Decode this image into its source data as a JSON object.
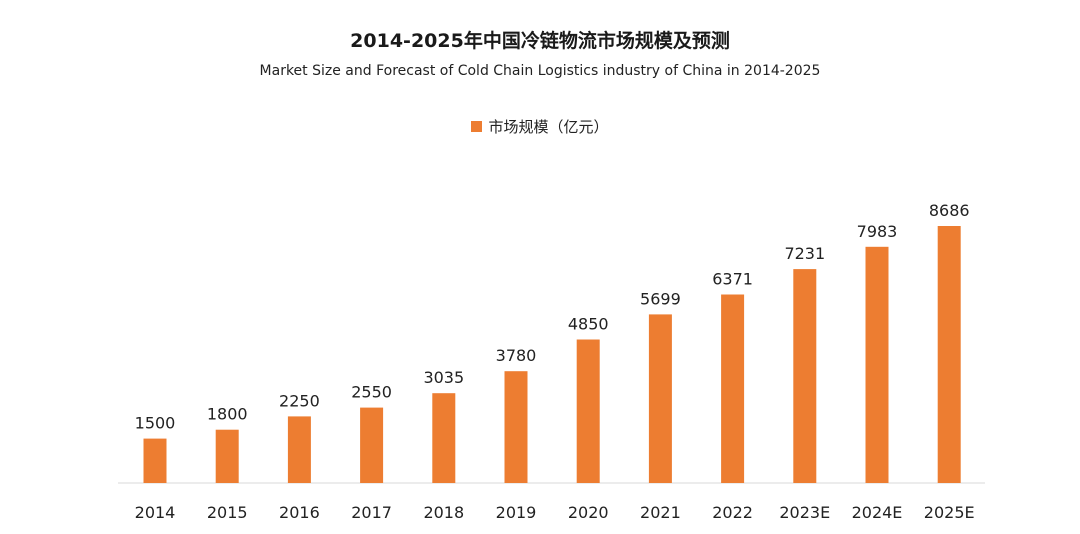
{
  "chart_data": {
    "type": "bar",
    "title": "2014-2025年中国冷链物流市场规模及预测",
    "subtitle": "Market Size and Forecast of Cold Chain Logistics industry of China in 2014-2025",
    "legend_position": "top-center",
    "grid": false,
    "xlabel": "",
    "ylabel": "",
    "ylim": [
      0,
      9000
    ],
    "categories": [
      "2014",
      "2015",
      "2016",
      "2017",
      "2018",
      "2019",
      "2020",
      "2021",
      "2022",
      "2023E",
      "2024E",
      "2025E"
    ],
    "series": [
      {
        "name": "市场规模（亿元）",
        "color": "#ed7d31",
        "values": [
          1500,
          1800,
          2250,
          2550,
          3035,
          3780,
          4850,
          5699,
          6371,
          7231,
          7983,
          8686
        ]
      }
    ]
  }
}
